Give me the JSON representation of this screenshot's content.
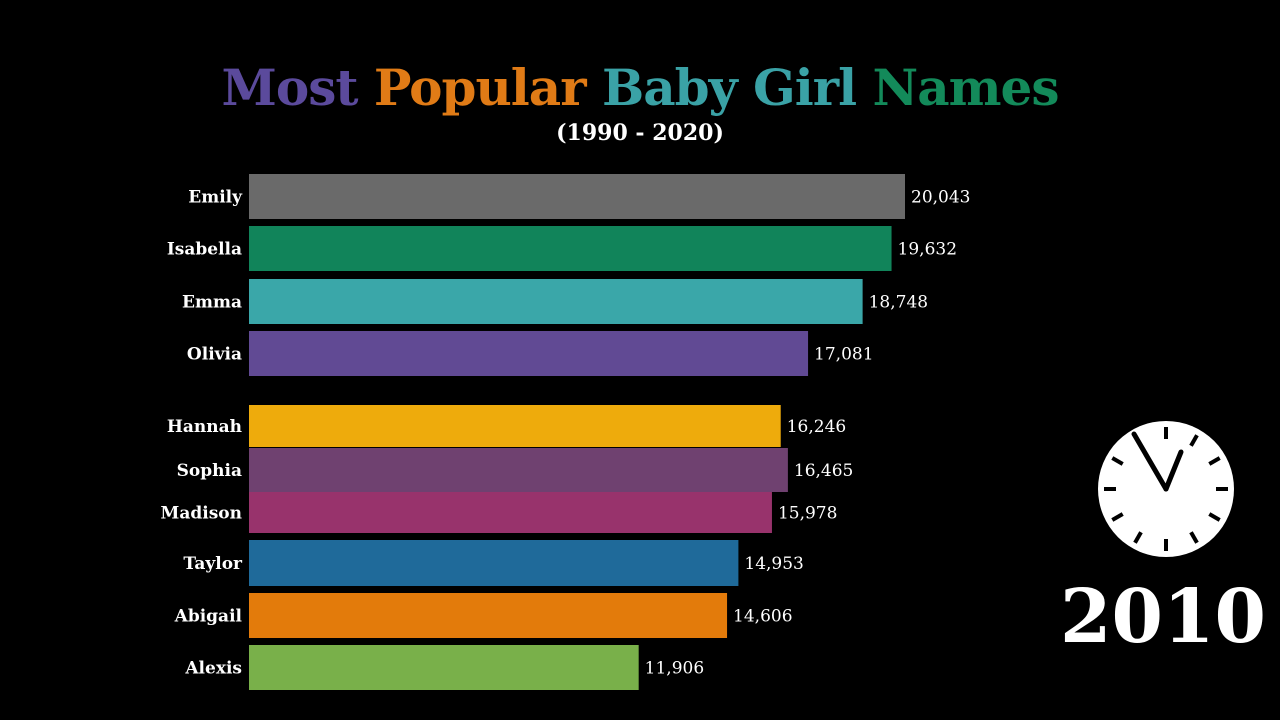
{
  "title": {
    "words": [
      {
        "text": "Most",
        "color": "#5b4a9c"
      },
      {
        "text": "Popular",
        "color": "#e07b16"
      },
      {
        "text": "Baby Girl",
        "color": "#3aa2a6"
      },
      {
        "text": "Names",
        "color": "#138a5a"
      }
    ]
  },
  "subtitle": "(1990 - 2020)",
  "year": "2010",
  "chart_data": {
    "type": "bar",
    "orientation": "horizontal",
    "title": "Most Popular Baby Girl Names",
    "subtitle": "(1990 - 2020)",
    "year": "2010",
    "categories": [
      "Emily",
      "Isabella",
      "Emma",
      "Olivia",
      "Hannah",
      "Sophia",
      "Madison",
      "Taylor",
      "Abigail",
      "Alexis"
    ],
    "values": [
      20043,
      19632,
      18748,
      17081,
      16246,
      16465,
      15978,
      14953,
      14606,
      11906
    ],
    "value_labels": [
      "20,043",
      "19,632",
      "18,748",
      "17,081",
      "16,246",
      "16,465",
      "15,978",
      "14,953",
      "14,606",
      "11,906"
    ],
    "colors": [
      "#6a6a6a",
      "#11845a",
      "#3aa7a9",
      "#614a94",
      "#eeab0c",
      "#6f4170",
      "#98336c",
      "#1f6a9a",
      "#e37b0b",
      "#79b04a"
    ],
    "xlim": [
      0,
      20043
    ],
    "grid": false,
    "legend": "none"
  }
}
